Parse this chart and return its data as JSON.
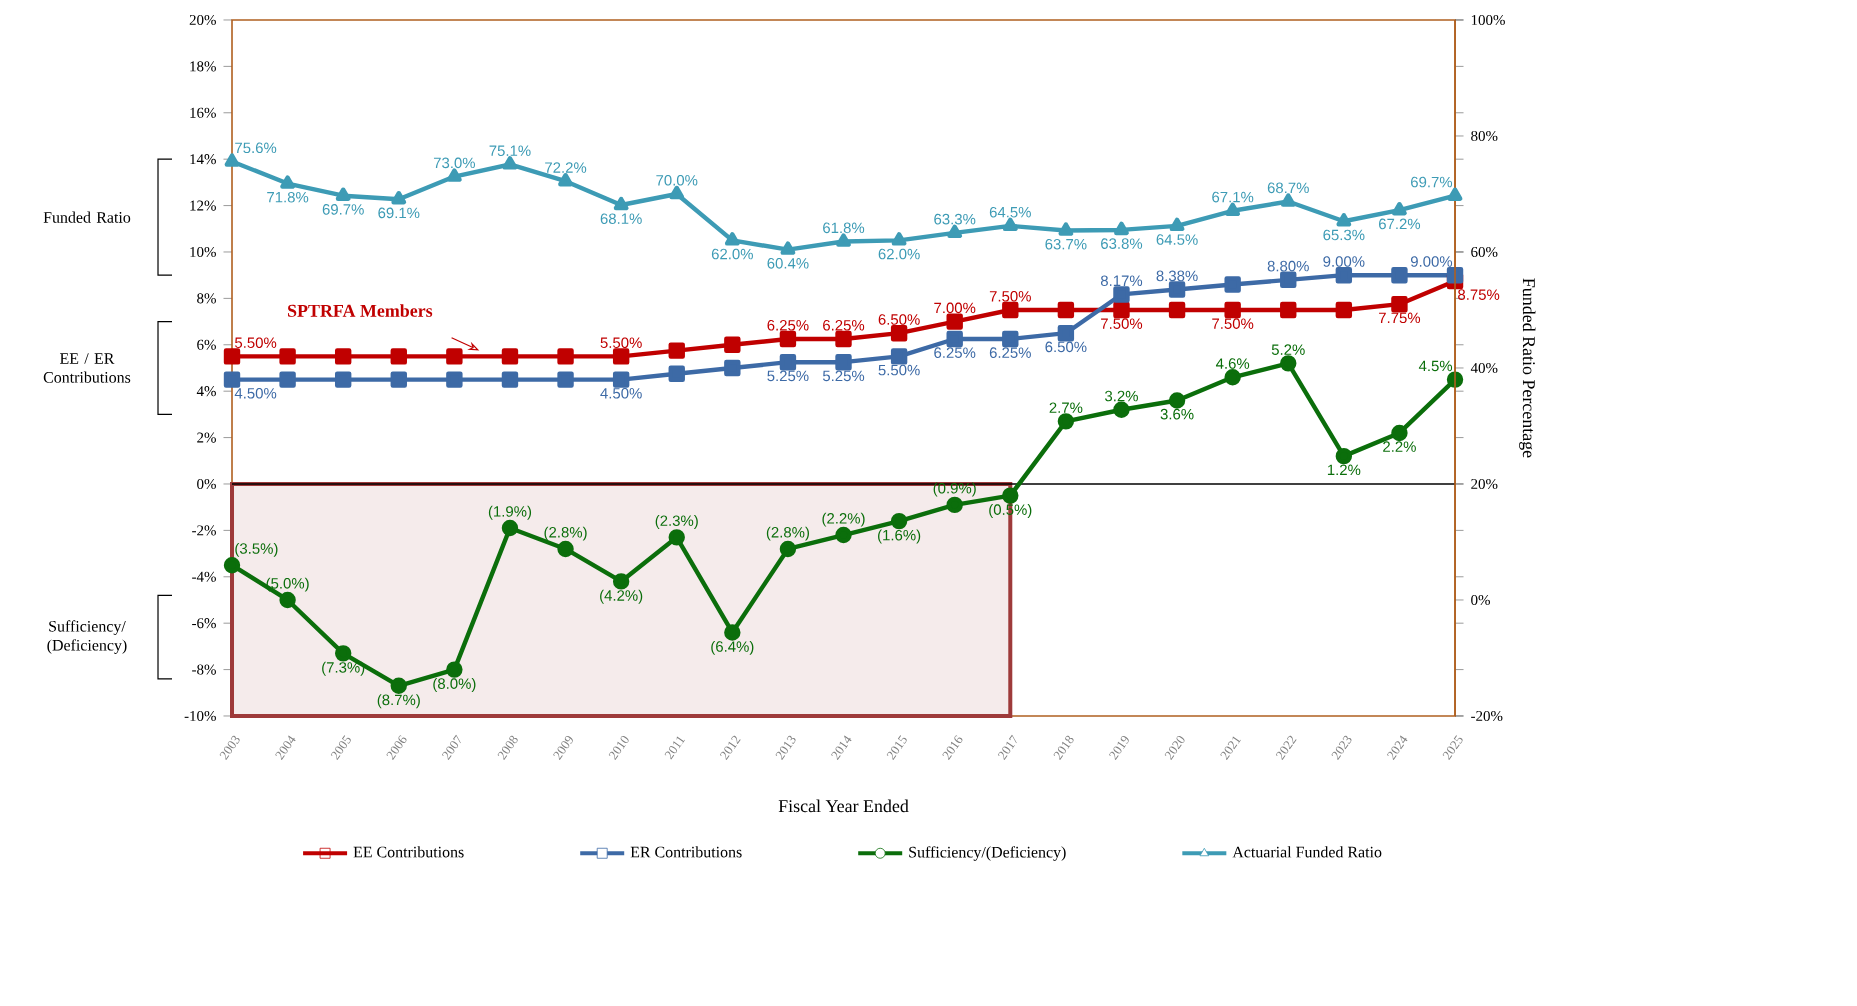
{
  "chart_data": {
    "type": "line",
    "xlabel": "Fiscal Year Ended",
    "y2label": "Funded Ratio Percentage",
    "categories": [
      "2003",
      "2004",
      "2005",
      "2006",
      "2007",
      "2008",
      "2009",
      "2010",
      "2011",
      "2012",
      "2013",
      "2014",
      "2015",
      "2016",
      "2017",
      "2018",
      "2019",
      "2020",
      "2021",
      "2022",
      "2023",
      "2024",
      "2025"
    ],
    "ylim": [
      -10,
      20
    ],
    "yticks": [
      {
        "value": -10,
        "label": "-10%"
      },
      {
        "value": -8,
        "label": "-8%"
      },
      {
        "value": -6,
        "label": "-6%"
      },
      {
        "value": -4,
        "label": "-4%"
      },
      {
        "value": -2,
        "label": "-2%"
      },
      {
        "value": 0,
        "label": "0%"
      },
      {
        "value": 2,
        "label": "2%"
      },
      {
        "value": 4,
        "label": "4%"
      },
      {
        "value": 6,
        "label": "6%"
      },
      {
        "value": 8,
        "label": "8%"
      },
      {
        "value": 10,
        "label": "10%"
      },
      {
        "value": 12,
        "label": "12%"
      },
      {
        "value": 14,
        "label": "14%"
      },
      {
        "value": 16,
        "label": "16%"
      },
      {
        "value": 18,
        "label": "18%"
      },
      {
        "value": 20,
        "label": "20%"
      }
    ],
    "y2lim": [
      -20,
      100
    ],
    "y2ticks": [
      {
        "value": -20,
        "label": "-20%"
      },
      {
        "value": 0,
        "label": "0%"
      },
      {
        "value": 20,
        "label": "20%"
      },
      {
        "value": 40,
        "label": "40%"
      },
      {
        "value": 60,
        "label": "60%"
      },
      {
        "value": 80,
        "label": "80%"
      },
      {
        "value": 100,
        "label": "100%"
      }
    ],
    "series": [
      {
        "name": "EE Contributions",
        "color": "#c00000",
        "marker": "square",
        "values": [
          5.5,
          5.5,
          5.5,
          5.5,
          5.5,
          5.5,
          5.5,
          5.5,
          5.75,
          6.0,
          6.25,
          6.25,
          6.5,
          7.0,
          7.5,
          7.5,
          7.5,
          7.5,
          7.5,
          7.5,
          7.5,
          7.75,
          8.75
        ],
        "value_labels": [
          "5.50%",
          null,
          null,
          null,
          null,
          null,
          null,
          "5.50%",
          null,
          null,
          "6.25%",
          "6.25%",
          "6.50%",
          "7.00%",
          "7.50%",
          null,
          "7.50%",
          null,
          "7.50%",
          null,
          null,
          "7.75%",
          "8.75%"
        ]
      },
      {
        "name": "ER Contributions",
        "color": "#3d6aa6",
        "marker": "square",
        "values": [
          4.5,
          4.5,
          4.5,
          4.5,
          4.5,
          4.5,
          4.5,
          4.5,
          4.75,
          5.0,
          5.25,
          5.25,
          5.5,
          6.25,
          6.25,
          6.5,
          8.17,
          8.38,
          8.6,
          8.8,
          9.0,
          9.0,
          9.0
        ],
        "value_labels": [
          "4.50%",
          null,
          null,
          null,
          null,
          null,
          null,
          "4.50%",
          null,
          null,
          "5.25%",
          "5.25%",
          "5.50%",
          "6.25%",
          "6.25%",
          "6.50%",
          "8.17%",
          "8.38%",
          null,
          "8.80%",
          "9.00%",
          null,
          "9.00%"
        ]
      },
      {
        "name": "Sufficiency/(Deficiency)",
        "color": "#0b6e0b",
        "marker": "circle",
        "values": [
          -3.5,
          -5.0,
          -7.3,
          -8.7,
          -8.0,
          -1.9,
          -2.8,
          -4.2,
          -2.3,
          -6.4,
          -2.8,
          -2.2,
          -1.6,
          -0.9,
          -0.5,
          2.7,
          3.2,
          3.6,
          4.6,
          5.2,
          1.2,
          2.2,
          4.5
        ],
        "value_labels": [
          "(3.5%)",
          "(5.0%)",
          "(7.3%)",
          "(8.7%)",
          "(8.0%)",
          "(1.9%)",
          "(2.8%)",
          "(4.2%)",
          "(2.3%)",
          "(6.4%)",
          "(2.8%)",
          "(2.2%)",
          "(1.6%)",
          "(0.9%)",
          "(0.5%)",
          "2.7%",
          "3.2%",
          "3.6%",
          "4.6%",
          "5.2%",
          "1.2%",
          "2.2%",
          "4.5%"
        ]
      },
      {
        "name": "Actuarial Funded Ratio",
        "color": "#3d9bb5",
        "marker": "triangle",
        "axis": "y2",
        "values": [
          75.6,
          71.8,
          69.7,
          69.1,
          73.0,
          75.1,
          72.2,
          68.1,
          70.0,
          62.0,
          60.4,
          61.8,
          62.0,
          63.3,
          64.5,
          63.7,
          63.8,
          64.5,
          67.1,
          68.7,
          65.3,
          67.2,
          69.7
        ],
        "value_labels": [
          "75.6%",
          "71.8%",
          "69.7%",
          "69.1%",
          "73.0%",
          "75.1%",
          "72.2%",
          "68.1%",
          "70.0%",
          "62.0%",
          "60.4%",
          "61.8%",
          "62.0%",
          "63.3%",
          "64.5%",
          "63.7%",
          "63.8%",
          "64.5%",
          "67.1%",
          "68.7%",
          "65.3%",
          "67.2%",
          "69.7%"
        ]
      }
    ],
    "bands": [
      {
        "axis": "x",
        "from": "2003",
        "to": "2017",
        "color": "#9e3a3a"
      }
    ],
    "annotations": [
      "Funded Ratio",
      "EE / ER Contributions",
      "Sufficiency/ (Deficiency)",
      "SPTRFA Members"
    ],
    "line_style": "solid",
    "legend": "bottom"
  }
}
